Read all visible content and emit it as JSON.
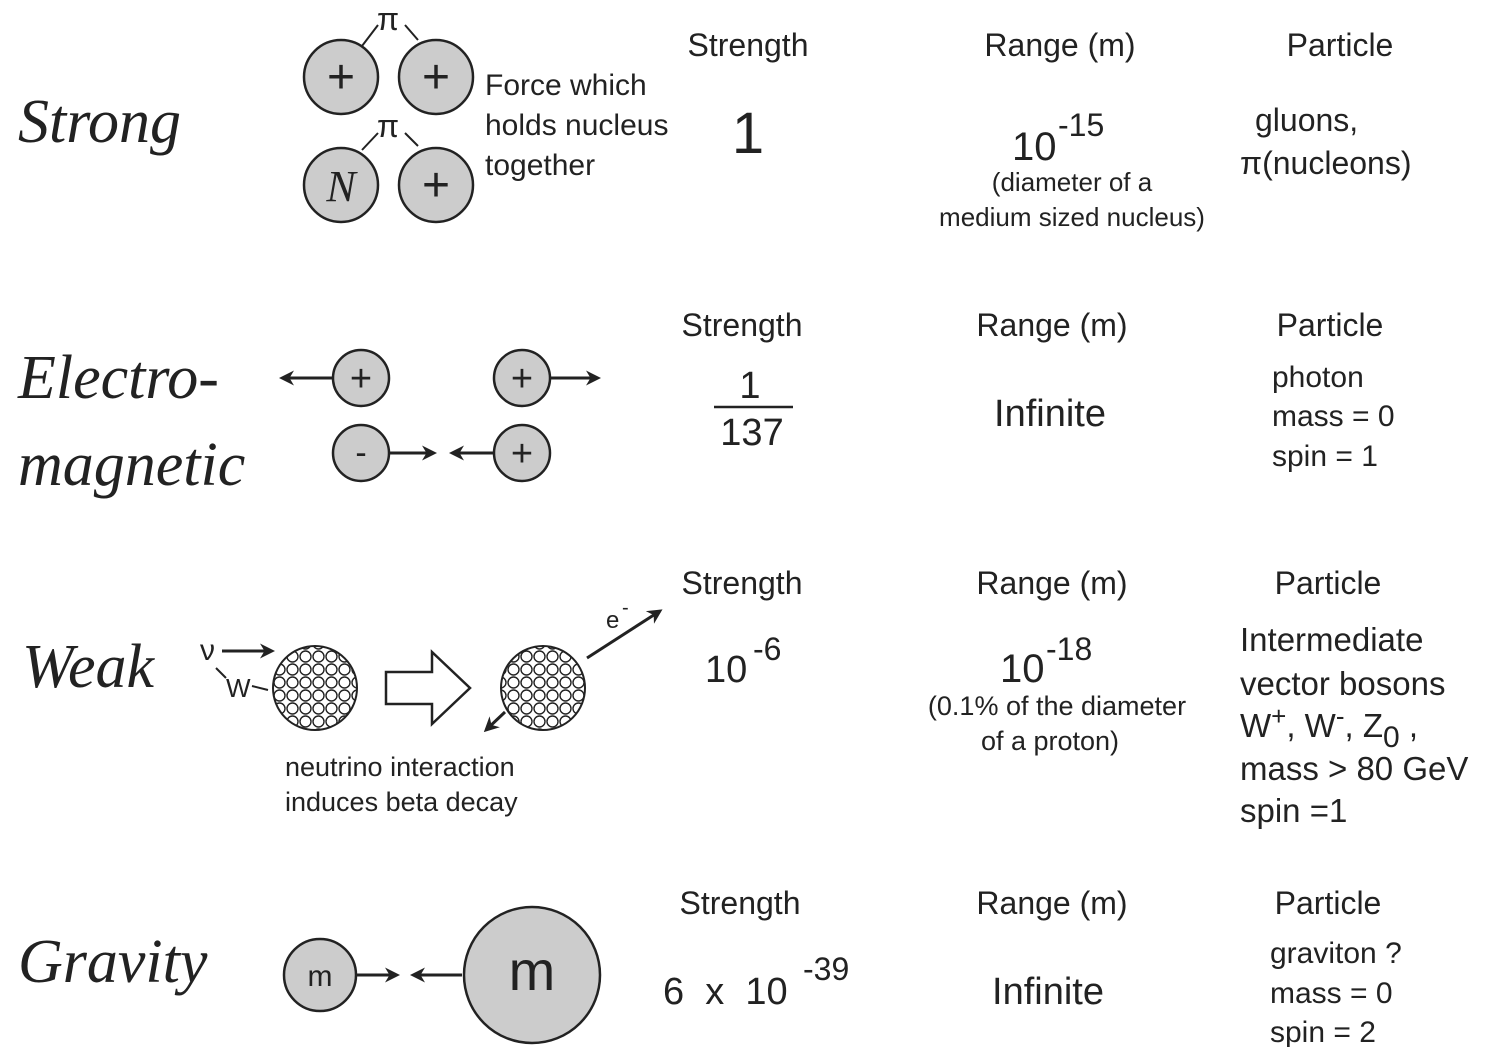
{
  "forces": [
    {
      "name": [
        "Strong"
      ],
      "diagram": {
        "exchange": [
          "π",
          "π"
        ],
        "charges": [
          "+",
          "+",
          "N",
          "+"
        ],
        "caption": [
          "Force which",
          "holds nucleus",
          "together"
        ]
      },
      "strength_label": "Strength",
      "strength": {
        "text": "1"
      },
      "range_label": "Range (m)",
      "range": {
        "base": "10",
        "exp": "-15",
        "note": [
          "(diameter of a",
          "medium sized nucleus)"
        ]
      },
      "particle_label": "Particle",
      "particle": [
        "gluons,",
        "π(nucleons)"
      ]
    },
    {
      "name": [
        "Electro-",
        "magnetic"
      ],
      "diagram": {
        "charges": [
          "+",
          "+",
          "-",
          "+"
        ]
      },
      "strength_label": "Strength",
      "strength": {
        "numerator": "1",
        "denominator": "137"
      },
      "range_label": "Range (m)",
      "range": {
        "text": "Infinite"
      },
      "particle_label": "Particle",
      "particle": [
        "photon",
        "mass = 0",
        "spin = 1"
      ]
    },
    {
      "name": [
        "Weak"
      ],
      "diagram": {
        "labels": [
          "ν",
          "W"
        ],
        "electron": {
          "text": "e",
          "sup": "-"
        },
        "caption": [
          "neutrino interaction",
          "induces beta decay"
        ]
      },
      "strength_label": "Strength",
      "strength": {
        "base": "10",
        "exp": "-6"
      },
      "range_label": "Range (m)",
      "range": {
        "base": "10",
        "exp": "-18",
        "note": [
          "(0.1% of the diameter",
          "of a proton)"
        ]
      },
      "particle_label": "Particle",
      "particle": [
        "Intermediate",
        "vector bosons",
        "mass > 80 GeV",
        "spin =1"
      ],
      "bosons": [
        {
          "text": "W"
        },
        {
          "sup": "+"
        },
        {
          "text": ", W"
        },
        {
          "sup": "-"
        },
        {
          "text": ", Z"
        },
        {
          "sub": "0"
        },
        {
          "text": " ,"
        }
      ]
    },
    {
      "name": [
        "Gravity"
      ],
      "diagram": {
        "masses": [
          "m",
          "m"
        ]
      },
      "strength_label": "Strength",
      "strength": {
        "base": "6  x  10",
        "exp": "-39"
      },
      "range_label": "Range (m)",
      "range": {
        "text": "Infinite"
      },
      "particle_label": "Particle",
      "particle": [
        "graviton ?",
        "mass = 0",
        "spin = 2"
      ]
    }
  ]
}
